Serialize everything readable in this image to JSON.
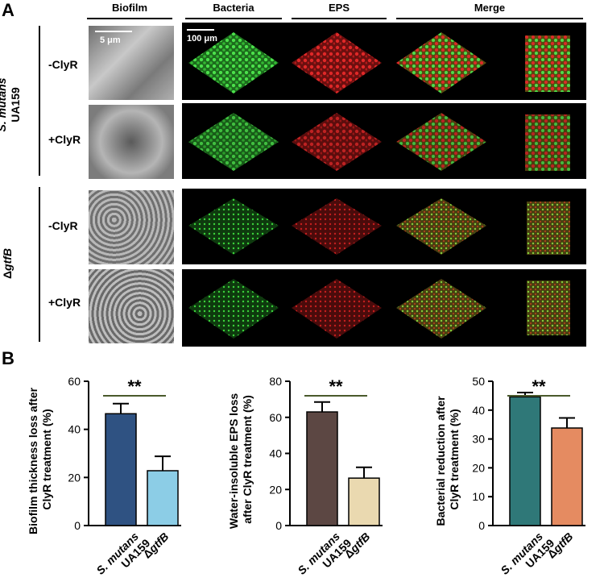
{
  "figure": {
    "panel_a_letter": "A",
    "panel_b_letter": "B",
    "column_headers": [
      "Biofilm",
      "Bacteria",
      "EPS",
      "Merge"
    ],
    "strains": [
      {
        "name_italic": "S. mutans",
        "name_plain": "UA159"
      },
      {
        "name_italic": "gtfB",
        "prefix": "Δ"
      }
    ],
    "rows": [
      "-ClyR",
      "+ClyR",
      "-ClyR",
      "+ClyR"
    ],
    "scalebars": {
      "sem": "5 μm",
      "confocal": "100 μm"
    },
    "colors": {
      "bacteria": "#3bd23b",
      "eps": "#d21e1e",
      "bar1_a": "#2f5282",
      "bar1_b": "#8ccde6",
      "bar2_a": "#5c4743",
      "bar2_b": "#ead9b0",
      "bar3_a": "#2f7878",
      "bar3_b": "#e58b61",
      "signif_line": "#4a5a2c"
    }
  },
  "chart_data": [
    {
      "type": "bar",
      "ylabel": "Biofilm thickness loss after ClyR treatment (%)",
      "ylabel_lines": [
        "Biofilm thickness loss after",
        "ClyR treatment (%)"
      ],
      "categories": [
        {
          "italic": "S. mutans",
          "plain": "UA159"
        },
        {
          "prefix": "Δ",
          "italic": "gtfB"
        }
      ],
      "values": [
        46.5,
        22.8
      ],
      "errors": [
        4.2,
        6.0
      ],
      "ylim": [
        0,
        60
      ],
      "yticks": [
        0,
        20,
        40,
        60
      ],
      "significance": "**"
    },
    {
      "type": "bar",
      "ylabel": "Water-insoluble EPS loss after ClyR treatment (%)",
      "ylabel_lines": [
        "Water-insoluble EPS loss",
        "after ClyR treatment (%)"
      ],
      "categories": [
        {
          "italic": "S. mutans",
          "plain": "UA159"
        },
        {
          "prefix": "Δ",
          "italic": "gtfB"
        }
      ],
      "values": [
        63.0,
        26.3
      ],
      "errors": [
        5.5,
        6.0
      ],
      "ylim": [
        0,
        80
      ],
      "yticks": [
        0,
        20,
        40,
        60,
        80
      ],
      "significance": "**"
    },
    {
      "type": "bar",
      "ylabel": "Bacterial reduction after ClyR treatment (%)",
      "ylabel_lines": [
        "Bacterial reduction after",
        "ClyR treatment (%)"
      ],
      "categories": [
        {
          "italic": "S. mutans",
          "plain": "UA159"
        },
        {
          "prefix": "Δ",
          "italic": "gtfB"
        }
      ],
      "values": [
        44.6,
        33.8
      ],
      "errors": [
        1.5,
        3.5
      ],
      "ylim": [
        0,
        50
      ],
      "yticks": [
        0,
        10,
        20,
        30,
        40,
        50
      ],
      "significance": "**"
    }
  ]
}
